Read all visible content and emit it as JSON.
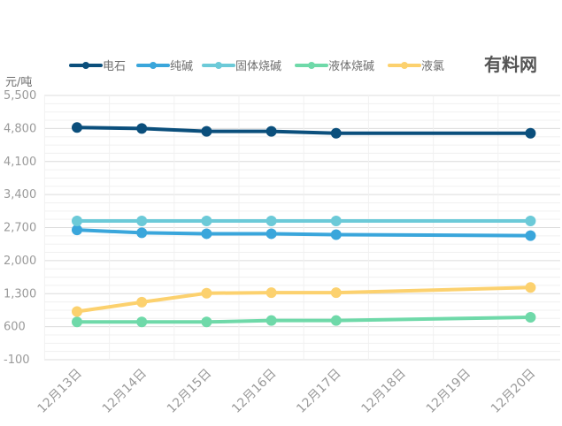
{
  "watermark": "有料网",
  "chart_data": {
    "type": "line",
    "ylabel": "元/吨",
    "ylim": [
      -100,
      5500
    ],
    "yticks": [
      -100,
      600,
      1300,
      2000,
      2700,
      3400,
      4100,
      4800,
      5500
    ],
    "ytick_labels": [
      "-100",
      "600",
      "1,300",
      "2,000",
      "2,700",
      "3,400",
      "4,100",
      "4,800",
      "5,500"
    ],
    "grid": true,
    "legend_position": "top",
    "categories": [
      "12月13日",
      "12月14日",
      "12月15日",
      "12月16日",
      "12月17日",
      "12月18日",
      "12月19日",
      "12月20日"
    ],
    "series": [
      {
        "name": "电石",
        "color": "#0b4f7c",
        "values": [
          4820,
          4800,
          4740,
          4740,
          4700,
          null,
          null,
          4700
        ]
      },
      {
        "name": "纯碱",
        "color": "#3aa6db",
        "values": [
          2650,
          2590,
          2570,
          2570,
          2550,
          null,
          null,
          2530
        ]
      },
      {
        "name": "固体烧碱",
        "color": "#6ccad8",
        "values": [
          2840,
          2840,
          2840,
          2840,
          2840,
          null,
          null,
          2840
        ]
      },
      {
        "name": "液体烧碱",
        "color": "#6fd9a9",
        "values": [
          700,
          700,
          700,
          730,
          730,
          null,
          null,
          800
        ]
      },
      {
        "name": "液氯",
        "color": "#fcd16e",
        "values": [
          920,
          1120,
          1310,
          1320,
          1320,
          null,
          null,
          1430
        ]
      }
    ]
  }
}
